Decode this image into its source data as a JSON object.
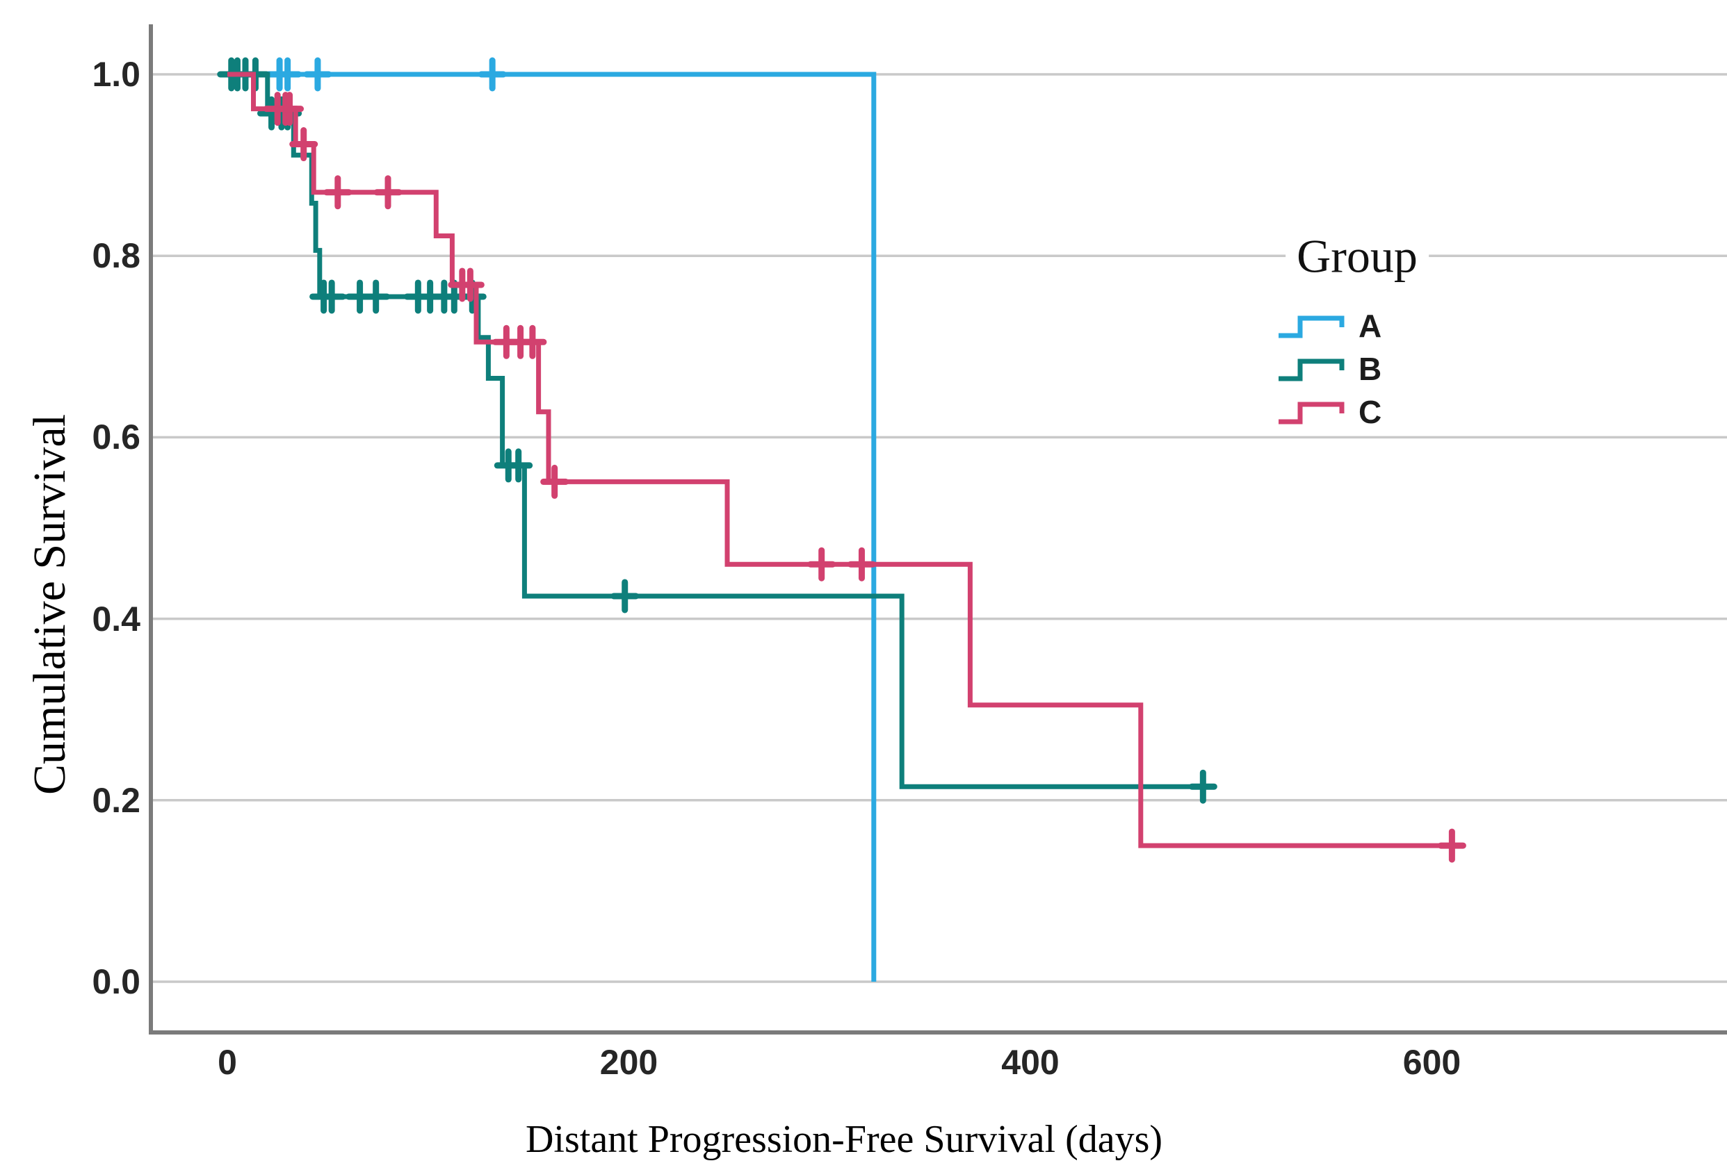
{
  "page": {
    "background": "#ffffff"
  },
  "chart_data": {
    "type": "line",
    "subtype": "kaplan-meier-step-function",
    "title": "",
    "xlabel": "Distant Progression-Free Survival (days)",
    "ylabel": "Cumulative Survival",
    "x_tick_labels": [
      "0",
      "200",
      "400",
      "600"
    ],
    "x_tick_values": [
      0,
      200,
      400,
      600
    ],
    "y_tick_labels": [
      "1.0",
      "0.8",
      "0.6",
      "0.4",
      "0.2",
      "0.0"
    ],
    "y_tick_values": [
      1.0,
      0.8,
      0.6,
      0.4,
      0.2,
      0.0
    ],
    "xlim": [
      -40,
      747
    ],
    "ylim": [
      -0.06,
      1.06
    ],
    "grid": "horizontal-only",
    "censor_marker": "plus",
    "legend": {
      "title": "Group",
      "position": "inside-right"
    },
    "colors": {
      "grid": "#c9c9c9",
      "axis": "#7b7b7b",
      "tick_text": "#262626",
      "title_text": "#000000",
      "group_a": "#2BA9E1",
      "group_b": "#0E7F7B",
      "group_c": "#D2416F"
    },
    "series": [
      {
        "name": "A",
        "color": "#2BA9E1",
        "steps": [
          [
            0,
            1.0
          ],
          [
            322,
            1.0
          ],
          [
            322,
            0.0
          ]
        ],
        "censors": [
          [
            26,
            1.0
          ],
          [
            30,
            1.0
          ],
          [
            45,
            1.0
          ],
          [
            132,
            1.0
          ]
        ]
      },
      {
        "name": "B",
        "color": "#0E7F7B",
        "steps": [
          [
            0,
            1.0
          ],
          [
            20,
            1.0
          ],
          [
            20,
            0.957
          ],
          [
            33,
            0.957
          ],
          [
            33,
            0.911
          ],
          [
            42,
            0.911
          ],
          [
            42,
            0.858
          ],
          [
            44,
            0.858
          ],
          [
            44,
            0.806
          ],
          [
            46,
            0.806
          ],
          [
            46,
            0.755
          ],
          [
            125,
            0.755
          ],
          [
            125,
            0.71
          ],
          [
            130,
            0.71
          ],
          [
            130,
            0.665
          ],
          [
            137,
            0.665
          ],
          [
            137,
            0.569
          ],
          [
            148,
            0.569
          ],
          [
            148,
            0.425
          ],
          [
            336,
            0.425
          ],
          [
            336,
            0.215
          ],
          [
            486,
            0.215
          ]
        ],
        "censors": [
          [
            2,
            1.0
          ],
          [
            5,
            1.0
          ],
          [
            9,
            1.0
          ],
          [
            14,
            1.0
          ],
          [
            22,
            0.957
          ],
          [
            27,
            0.957
          ],
          [
            30,
            0.957
          ],
          [
            48,
            0.755
          ],
          [
            52,
            0.755
          ],
          [
            66,
            0.755
          ],
          [
            74,
            0.755
          ],
          [
            95,
            0.755
          ],
          [
            101,
            0.755
          ],
          [
            108,
            0.755
          ],
          [
            113,
            0.755
          ],
          [
            122,
            0.755
          ],
          [
            140,
            0.569
          ],
          [
            145,
            0.569
          ],
          [
            198,
            0.425
          ],
          [
            486,
            0.215
          ]
        ]
      },
      {
        "name": "C",
        "color": "#D2416F",
        "steps": [
          [
            0,
            1.0
          ],
          [
            13,
            1.0
          ],
          [
            13,
            0.962
          ],
          [
            34,
            0.962
          ],
          [
            34,
            0.923
          ],
          [
            43,
            0.923
          ],
          [
            43,
            0.87
          ],
          [
            104,
            0.87
          ],
          [
            104,
            0.822
          ],
          [
            112,
            0.822
          ],
          [
            112,
            0.768
          ],
          [
            124,
            0.768
          ],
          [
            124,
            0.705
          ],
          [
            155,
            0.705
          ],
          [
            155,
            0.628
          ],
          [
            160,
            0.628
          ],
          [
            160,
            0.551
          ],
          [
            249,
            0.551
          ],
          [
            249,
            0.46
          ],
          [
            370,
            0.46
          ],
          [
            370,
            0.305
          ],
          [
            455,
            0.305
          ],
          [
            455,
            0.15
          ],
          [
            612,
            0.15
          ]
        ],
        "censors": [
          [
            25,
            0.962
          ],
          [
            29,
            0.962
          ],
          [
            31,
            0.962
          ],
          [
            38,
            0.923
          ],
          [
            55,
            0.87
          ],
          [
            80,
            0.87
          ],
          [
            117,
            0.768
          ],
          [
            121,
            0.768
          ],
          [
            139,
            0.705
          ],
          [
            146,
            0.705
          ],
          [
            152,
            0.705
          ],
          [
            163,
            0.551
          ],
          [
            296,
            0.46
          ],
          [
            316,
            0.46
          ],
          [
            610,
            0.15
          ]
        ]
      }
    ]
  }
}
